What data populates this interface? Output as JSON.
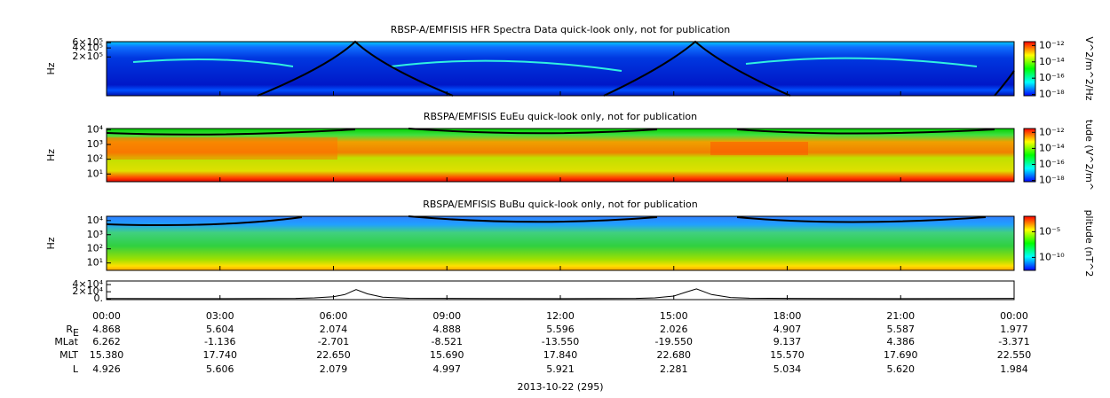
{
  "chart_data": [
    {
      "type": "spectrogram",
      "title": "RBSP-A/EMFISIS  HFR Spectra Data quick-look only, not for publication",
      "ylabel": "Hz",
      "ylog": true,
      "ylim": [
        10000,
        650000
      ],
      "yticks": [
        {
          "value": 200000,
          "label": "2×10⁵"
        },
        {
          "value": 400000,
          "label": "4×10⁵"
        },
        {
          "value": 600000,
          "label": "6×10⁵"
        }
      ],
      "clim": [
        7e-19,
        3e-12
      ],
      "clabel": "V^2/m^2/Hz",
      "cticks": [
        {
          "value": 1e-12,
          "label": "10⁻¹²"
        },
        {
          "value": 1e-14,
          "label": "10⁻¹⁴"
        },
        {
          "value": 1e-16,
          "label": "10⁻¹⁶"
        },
        {
          "value": 1e-18,
          "label": "10⁻¹⁸"
        }
      ]
    },
    {
      "type": "spectrogram",
      "title": "RBSPA/EMFISIS  EuEu quick-look only, not for publication",
      "ylabel": "Hz",
      "ylog": true,
      "ylim": [
        3,
        12000
      ],
      "yticks": [
        {
          "value": 10,
          "label": "10¹"
        },
        {
          "value": 100,
          "label": "10²"
        },
        {
          "value": 1000,
          "label": "10³"
        },
        {
          "value": 10000,
          "label": "10⁴"
        }
      ],
      "clim": [
        7e-19,
        3e-12
      ],
      "clabel": "tude (V^2/m^",
      "cticks": [
        {
          "value": 1e-12,
          "label": "10⁻¹²"
        },
        {
          "value": 1e-14,
          "label": "10⁻¹⁴"
        },
        {
          "value": 1e-16,
          "label": "10⁻¹⁶"
        },
        {
          "value": 1e-18,
          "label": "10⁻¹⁸"
        }
      ]
    },
    {
      "type": "spectrogram",
      "title": "RBSPA/EMFISIS  BuBu quick-look only, not for publication",
      "ylabel": "Hz",
      "ylog": true,
      "ylim": [
        3,
        20000
      ],
      "yticks": [
        {
          "value": 10,
          "label": "10¹"
        },
        {
          "value": 100,
          "label": "10²"
        },
        {
          "value": 1000,
          "label": "10³"
        },
        {
          "value": 10000,
          "label": "10⁴"
        }
      ],
      "clim": [
        3e-13,
        0.01
      ],
      "clabel": "plitude (nT^2",
      "cticks": [
        {
          "value": 1e-05,
          "label": "10⁻⁵"
        },
        {
          "value": 1e-10,
          "label": "10⁻¹⁰"
        }
      ]
    },
    {
      "type": "line",
      "ylim": [
        -2000,
        50000
      ],
      "yticks": [
        {
          "value": 0,
          "label": "0."
        },
        {
          "value": 20000,
          "label": "2×10⁴"
        },
        {
          "value": 40000,
          "label": "4×10⁴"
        }
      ],
      "xlim": [
        0,
        24
      ],
      "xticks": [
        {
          "value": 0,
          "label": "00:00"
        },
        {
          "value": 3,
          "label": "03:00"
        },
        {
          "value": 6,
          "label": "06:00"
        },
        {
          "value": 9,
          "label": "09:00"
        },
        {
          "value": 12,
          "label": "12:00"
        },
        {
          "value": 15,
          "label": "15:00"
        },
        {
          "value": 18,
          "label": "18:00"
        },
        {
          "value": 21,
          "label": "21:00"
        },
        {
          "value": 24,
          "label": "00:00"
        }
      ],
      "x": [
        0,
        2,
        4,
        5,
        5.5,
        6,
        6.3,
        6.6,
        6.9,
        7.3,
        8,
        10,
        12,
        13,
        14,
        14.5,
        15,
        15.3,
        15.6,
        16,
        16.5,
        17,
        19,
        21,
        23,
        24
      ],
      "values": [
        1000,
        700,
        900,
        1500,
        3000,
        6000,
        12000,
        26000,
        14000,
        5000,
        1800,
        900,
        700,
        900,
        1500,
        3000,
        8000,
        18000,
        28000,
        12000,
        4000,
        2000,
        1000,
        800,
        1000,
        1500
      ],
      "color": "#000000"
    }
  ],
  "ephemeris": {
    "rows": [
      {
        "label": "R",
        "sub": "E",
        "values": [
          "4.868",
          "5.604",
          "2.074",
          "4.888",
          "5.596",
          "2.026",
          "4.907",
          "5.587",
          "1.977"
        ]
      },
      {
        "label": "MLat",
        "values": [
          "6.262",
          "-1.136",
          "-2.701",
          "-8.521",
          "-13.550",
          "-19.550",
          "9.137",
          "4.386",
          "-3.371"
        ]
      },
      {
        "label": "MLT",
        "values": [
          "15.380",
          "17.740",
          "22.650",
          "15.690",
          "17.840",
          "22.680",
          "15.570",
          "17.690",
          "22.550"
        ]
      },
      {
        "label": "L",
        "values": [
          "4.926",
          "5.606",
          "2.079",
          "4.997",
          "5.921",
          "2.281",
          "5.034",
          "5.620",
          "1.984"
        ]
      }
    ]
  },
  "date_label": "2013-10-22 (295)"
}
